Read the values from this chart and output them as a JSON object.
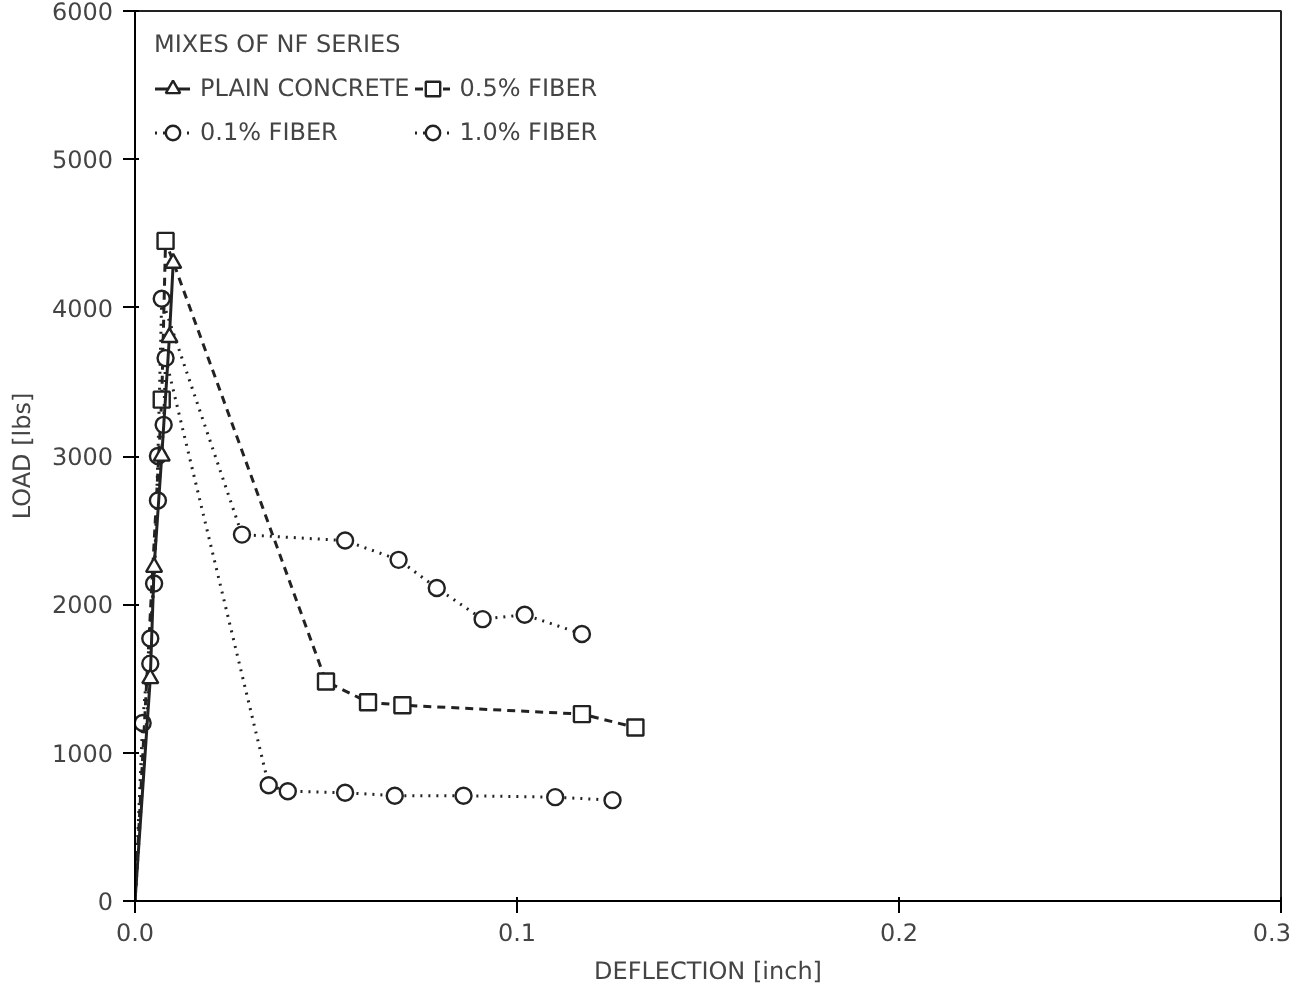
{
  "chart_data": {
    "type": "line",
    "xlabel": "DEFLECTION [inch]",
    "ylabel": "LOAD [lbs]",
    "legend_title": "MIXES OF NF SERIES",
    "xlim": [
      0,
      0.3
    ],
    "ylim": [
      0,
      6000
    ],
    "xticks": [
      {
        "value": 0,
        "label": "0.0"
      },
      0.1,
      0.2,
      0.3
    ],
    "yticks": [
      0,
      1000,
      2000,
      3000,
      4000,
      5000,
      6000
    ],
    "grid": false,
    "legend": "top left",
    "series": [
      {
        "name": "PLAIN CONCRETE",
        "color": "#222222",
        "marker": "triangle",
        "line_style": "solid",
        "x": [
          0,
          0.004,
          0.005,
          0.007,
          0.009,
          0.01
        ],
        "values": [
          0,
          1500,
          2250,
          3000,
          3800,
          4300
        ]
      },
      {
        "name": "0.1% FIBER",
        "color": "#222222",
        "marker": "circle",
        "line_style": "dotted",
        "x": [
          0,
          0.004,
          0.004,
          0.006,
          0.0075,
          0.008,
          0.035,
          0.04,
          0.055,
          0.068,
          0.086,
          0.11,
          0.125
        ],
        "values": [
          0,
          1600,
          1770,
          2700,
          3210,
          3660,
          780,
          740,
          730,
          710,
          710,
          700,
          680
        ]
      },
      {
        "name": "0.5% FIBER",
        "color": "#222222",
        "marker": "square",
        "line_style": "dashed",
        "x": [
          0,
          0.007,
          0.008,
          0.05,
          0.061,
          0.07,
          0.117,
          0.131
        ],
        "values": [
          0,
          3380,
          4450,
          1480,
          1340,
          1320,
          1260,
          1170
        ]
      },
      {
        "name": "1.0% FIBER",
        "color": "#222222",
        "marker": "circle",
        "line_style": "dotted",
        "x": [
          0,
          0.002,
          0.005,
          0.006,
          0.007,
          0.028,
          0.055,
          0.069,
          0.079,
          0.091,
          0.102,
          0.117
        ],
        "values": [
          0,
          1200,
          2140,
          3000,
          4060,
          2470,
          2430,
          2300,
          2110,
          1900,
          1930,
          1800
        ]
      }
    ]
  }
}
